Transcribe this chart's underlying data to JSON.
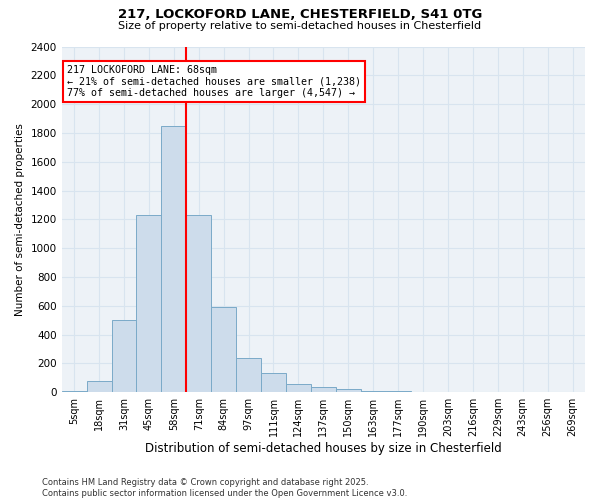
{
  "title_line1": "217, LOCKOFORD LANE, CHESTERFIELD, S41 0TG",
  "title_line2": "Size of property relative to semi-detached houses in Chesterfield",
  "xlabel": "Distribution of semi-detached houses by size in Chesterfield",
  "ylabel": "Number of semi-detached properties",
  "categories": [
    "5sqm",
    "18sqm",
    "31sqm",
    "45sqm",
    "58sqm",
    "71sqm",
    "84sqm",
    "97sqm",
    "111sqm",
    "124sqm",
    "137sqm",
    "150sqm",
    "163sqm",
    "177sqm",
    "190sqm",
    "203sqm",
    "216sqm",
    "229sqm",
    "243sqm",
    "256sqm",
    "269sqm"
  ],
  "values": [
    10,
    75,
    500,
    1230,
    1850,
    1230,
    590,
    240,
    130,
    55,
    35,
    25,
    10,
    5,
    0,
    0,
    0,
    0,
    0,
    0,
    0
  ],
  "bar_color": "#cddceb",
  "bar_edge_color": "#7aaac8",
  "red_line_bin": 5,
  "annotation_text_line1": "217 LOCKOFORD LANE: 68sqm",
  "annotation_text_line2": "← 21% of semi-detached houses are smaller (1,238)",
  "annotation_text_line3": "77% of semi-detached houses are larger (4,547) →",
  "ylim": [
    0,
    2400
  ],
  "yticks": [
    0,
    200,
    400,
    600,
    800,
    1000,
    1200,
    1400,
    1600,
    1800,
    2000,
    2200,
    2400
  ],
  "footer_line1": "Contains HM Land Registry data © Crown copyright and database right 2025.",
  "footer_line2": "Contains public sector information licensed under the Open Government Licence v3.0.",
  "background_color": "#edf2f7",
  "grid_color": "#d8e4ef"
}
